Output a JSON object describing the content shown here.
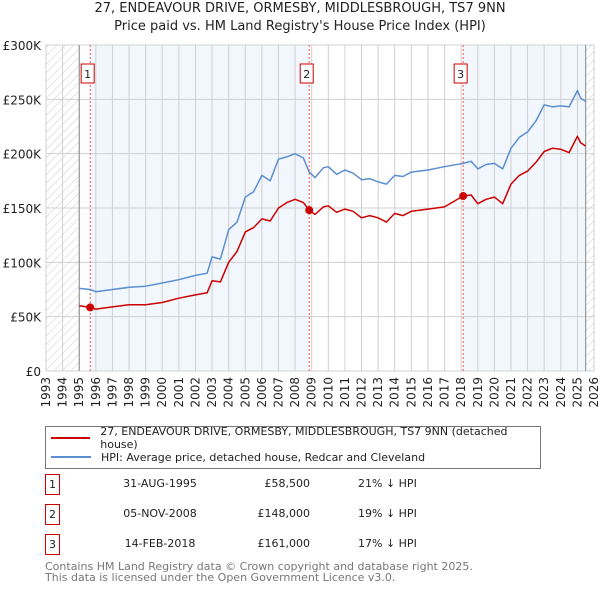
{
  "title_line1": "27, ENDEAVOUR DRIVE, ORMESBY, MIDDLESBROUGH, TS7 9NN",
  "title_line2": "Price paid vs. HM Land Registry's House Price Index (HPI)",
  "chart_data": {
    "type": "line",
    "xlim": [
      1993,
      2026
    ],
    "ylim": [
      0,
      300000
    ],
    "y_ticks": [
      0,
      50000,
      100000,
      150000,
      200000,
      250000,
      300000
    ],
    "y_tick_labels": [
      "£0",
      "£50K",
      "£100K",
      "£150K",
      "£200K",
      "£250K",
      "£300K"
    ],
    "x_ticks": [
      "1993",
      "1994",
      "1995",
      "1996",
      "1997",
      "1998",
      "1999",
      "2000",
      "2001",
      "2002",
      "2003",
      "2004",
      "2005",
      "2006",
      "2007",
      "2008",
      "2009",
      "2010",
      "2011",
      "2012",
      "2013",
      "2014",
      "2015",
      "2016",
      "2017",
      "2018",
      "2019",
      "2020",
      "2021",
      "2022",
      "2023",
      "2024",
      "2025",
      "2026"
    ],
    "grid": true,
    "data_range": [
      1995.0,
      2025.5
    ],
    "series": [
      {
        "name": "27, ENDEAVOUR DRIVE, ORMESBY, MIDDLESBROUGH, TS7 9NN (detached house)",
        "color": "#cc0000",
        "x": [
          1995.0,
          1995.66,
          1996,
          1997,
          1998,
          1999,
          2000,
          2001,
          2002,
          2002.7,
          2003,
          2003.5,
          2004,
          2004.5,
          2005,
          2005.5,
          2006,
          2006.5,
          2007,
          2007.5,
          2008,
          2008.5,
          2008.85,
          2009.2,
          2009.7,
          2010,
          2010.5,
          2011,
          2011.5,
          2012,
          2012.5,
          2013,
          2013.5,
          2014,
          2014.5,
          2015,
          2016,
          2017,
          2018.12,
          2018.6,
          2019,
          2019.5,
          2020,
          2020.5,
          2021,
          2021.5,
          2022,
          2022.5,
          2023,
          2023.5,
          2024,
          2024.5,
          2025,
          2025.2,
          2025.5
        ],
        "y": [
          60000,
          58500,
          57000,
          59000,
          61000,
          61000,
          63000,
          67000,
          70000,
          72000,
          83000,
          82000,
          100000,
          110000,
          128000,
          132000,
          140000,
          138000,
          150000,
          155000,
          158000,
          155000,
          148000,
          144000,
          151000,
          152000,
          146000,
          149000,
          147000,
          141000,
          143000,
          141000,
          137000,
          145000,
          143000,
          147000,
          149000,
          151000,
          161000,
          162000,
          154000,
          158000,
          160000,
          154000,
          172000,
          180000,
          184000,
          192000,
          202000,
          205000,
          204000,
          201000,
          216000,
          210000,
          207000
        ]
      },
      {
        "name": "HPI: Average price, detached house, Redcar and Cleveland",
        "color": "#5b8fd1",
        "x": [
          1995.0,
          1995.66,
          1996,
          1997,
          1998,
          1999,
          2000,
          2001,
          2002,
          2002.7,
          2003,
          2003.5,
          2004,
          2004.5,
          2005,
          2005.5,
          2006,
          2006.5,
          2007,
          2007.5,
          2008,
          2008.5,
          2008.85,
          2009.2,
          2009.7,
          2010,
          2010.5,
          2011,
          2011.5,
          2012,
          2012.5,
          2013,
          2013.5,
          2014,
          2014.5,
          2015,
          2016,
          2017,
          2018.12,
          2018.6,
          2019,
          2019.5,
          2020,
          2020.5,
          2021,
          2021.5,
          2022,
          2022.5,
          2023,
          2023.5,
          2024,
          2024.5,
          2025,
          2025.2,
          2025.5
        ],
        "y": [
          76000,
          75000,
          73000,
          75000,
          77000,
          78000,
          81000,
          84000,
          88000,
          90000,
          105000,
          103000,
          130000,
          137000,
          160000,
          165000,
          180000,
          175000,
          195000,
          197000,
          200000,
          196000,
          183000,
          178000,
          187000,
          188000,
          181000,
          185000,
          182000,
          176000,
          177000,
          174000,
          172000,
          180000,
          179000,
          183000,
          185000,
          188000,
          191000,
          193000,
          186000,
          190000,
          191000,
          186000,
          205000,
          215000,
          220000,
          230000,
          245000,
          243000,
          244000,
          243000,
          258000,
          251000,
          248000
        ]
      }
    ],
    "sales": [
      {
        "label": "1",
        "x": 1995.66,
        "y": 58500
      },
      {
        "label": "2",
        "x": 2008.85,
        "y": 148000
      },
      {
        "label": "3",
        "x": 2018.12,
        "y": 161000
      }
    ]
  },
  "legend": {
    "property": "27, ENDEAVOUR DRIVE, ORMESBY, MIDDLESBROUGH, TS7 9NN (detached house)",
    "hpi": "HPI: Average price, detached house, Redcar and Cleveland"
  },
  "transactions": [
    {
      "num": "1",
      "date": "31-AUG-1995",
      "price": "£58,500",
      "hpi": "21% ↓ HPI"
    },
    {
      "num": "2",
      "date": "05-NOV-2008",
      "price": "£148,000",
      "hpi": "19% ↓ HPI"
    },
    {
      "num": "3",
      "date": "14-FEB-2018",
      "price": "£161,000",
      "hpi": "17% ↓ HPI"
    }
  ],
  "footer_line1": "Contains HM Land Registry data © Crown copyright and database right 2025.",
  "footer_line2": "This data is licensed under the Open Government Licence v3.0."
}
